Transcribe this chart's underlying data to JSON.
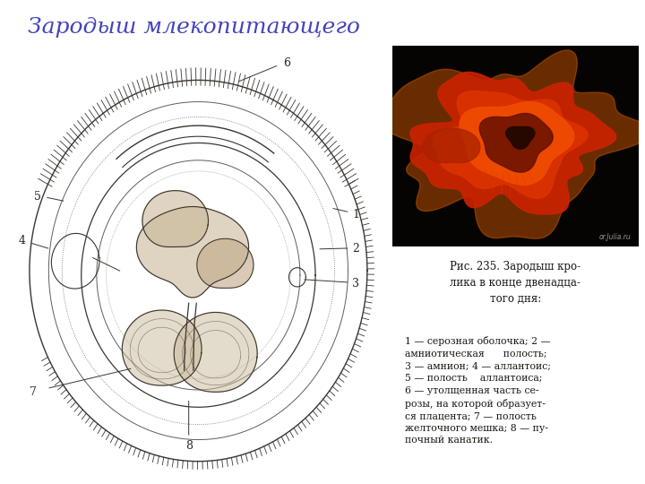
{
  "title": "Зародыш млекопитающего",
  "title_color": "#4444bb",
  "title_fontsize": 18,
  "background_color": "#ffffff",
  "panel_bg": "#f0dfa0",
  "photo_bg": "#080500",
  "text_bg": "#f0dfa0",
  "caption_title": "Рис. 235. Зародыш кро-\nлика в конце двенадца-\nтого дня:",
  "caption_body": "1 — серозная оболочка; 2 —\nамниотическая      полость;\n3 — амнион; 4 — аллантоис;\n5 — полость    аллантоиса;\n6 — утолщенная часть се-\nрозы, на которой образует-\nся плацента; 7 — полость\nжелточного мешка; 8 — пу-\nпочный канатик.",
  "draw_color": "#3a3530",
  "label_color": "#2a2520",
  "watermark": "or.Julia.ru"
}
